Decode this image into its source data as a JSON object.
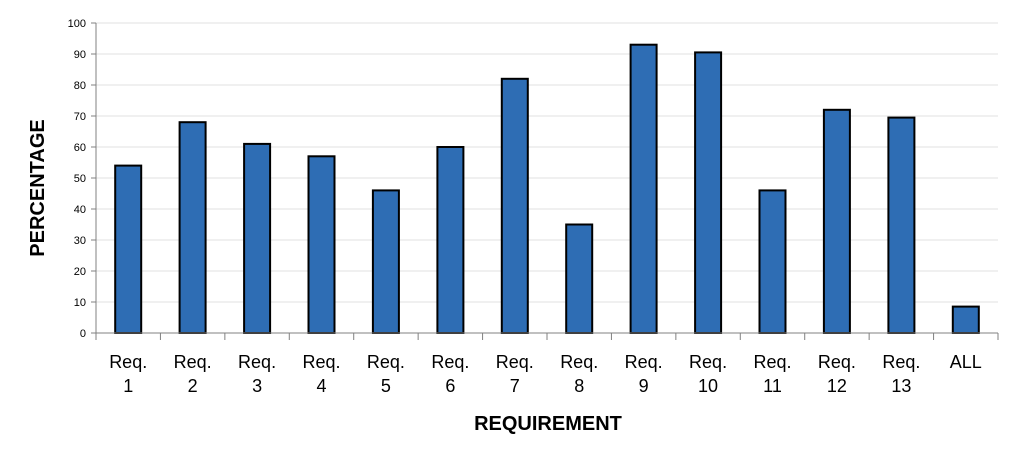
{
  "chart_data": {
    "type": "bar",
    "categories": [
      [
        "Req.",
        "1"
      ],
      [
        "Req.",
        "2"
      ],
      [
        "Req.",
        "3"
      ],
      [
        "Req.",
        "4"
      ],
      [
        "Req.",
        "5"
      ],
      [
        "Req.",
        "6"
      ],
      [
        "Req.",
        "7"
      ],
      [
        "Req.",
        "8"
      ],
      [
        "Req.",
        "9"
      ],
      [
        "Req.",
        "10"
      ],
      [
        "Req.",
        "11"
      ],
      [
        "Req.",
        "12"
      ],
      [
        "Req.",
        "13"
      ],
      [
        "ALL"
      ]
    ],
    "values": [
      54,
      68,
      61,
      57,
      46,
      60,
      82,
      35,
      93,
      90.5,
      46,
      72,
      69.5,
      8.5
    ],
    "xlabel": "REQUIREMENT",
    "ylabel": "PERCENTAGE",
    "ylim": [
      0,
      100
    ],
    "yticks": [
      0,
      10,
      20,
      30,
      40,
      50,
      60,
      70,
      80,
      90,
      100
    ],
    "grid": true,
    "bar_color": "#2e6db4",
    "bar_edge_color": "#000000"
  }
}
